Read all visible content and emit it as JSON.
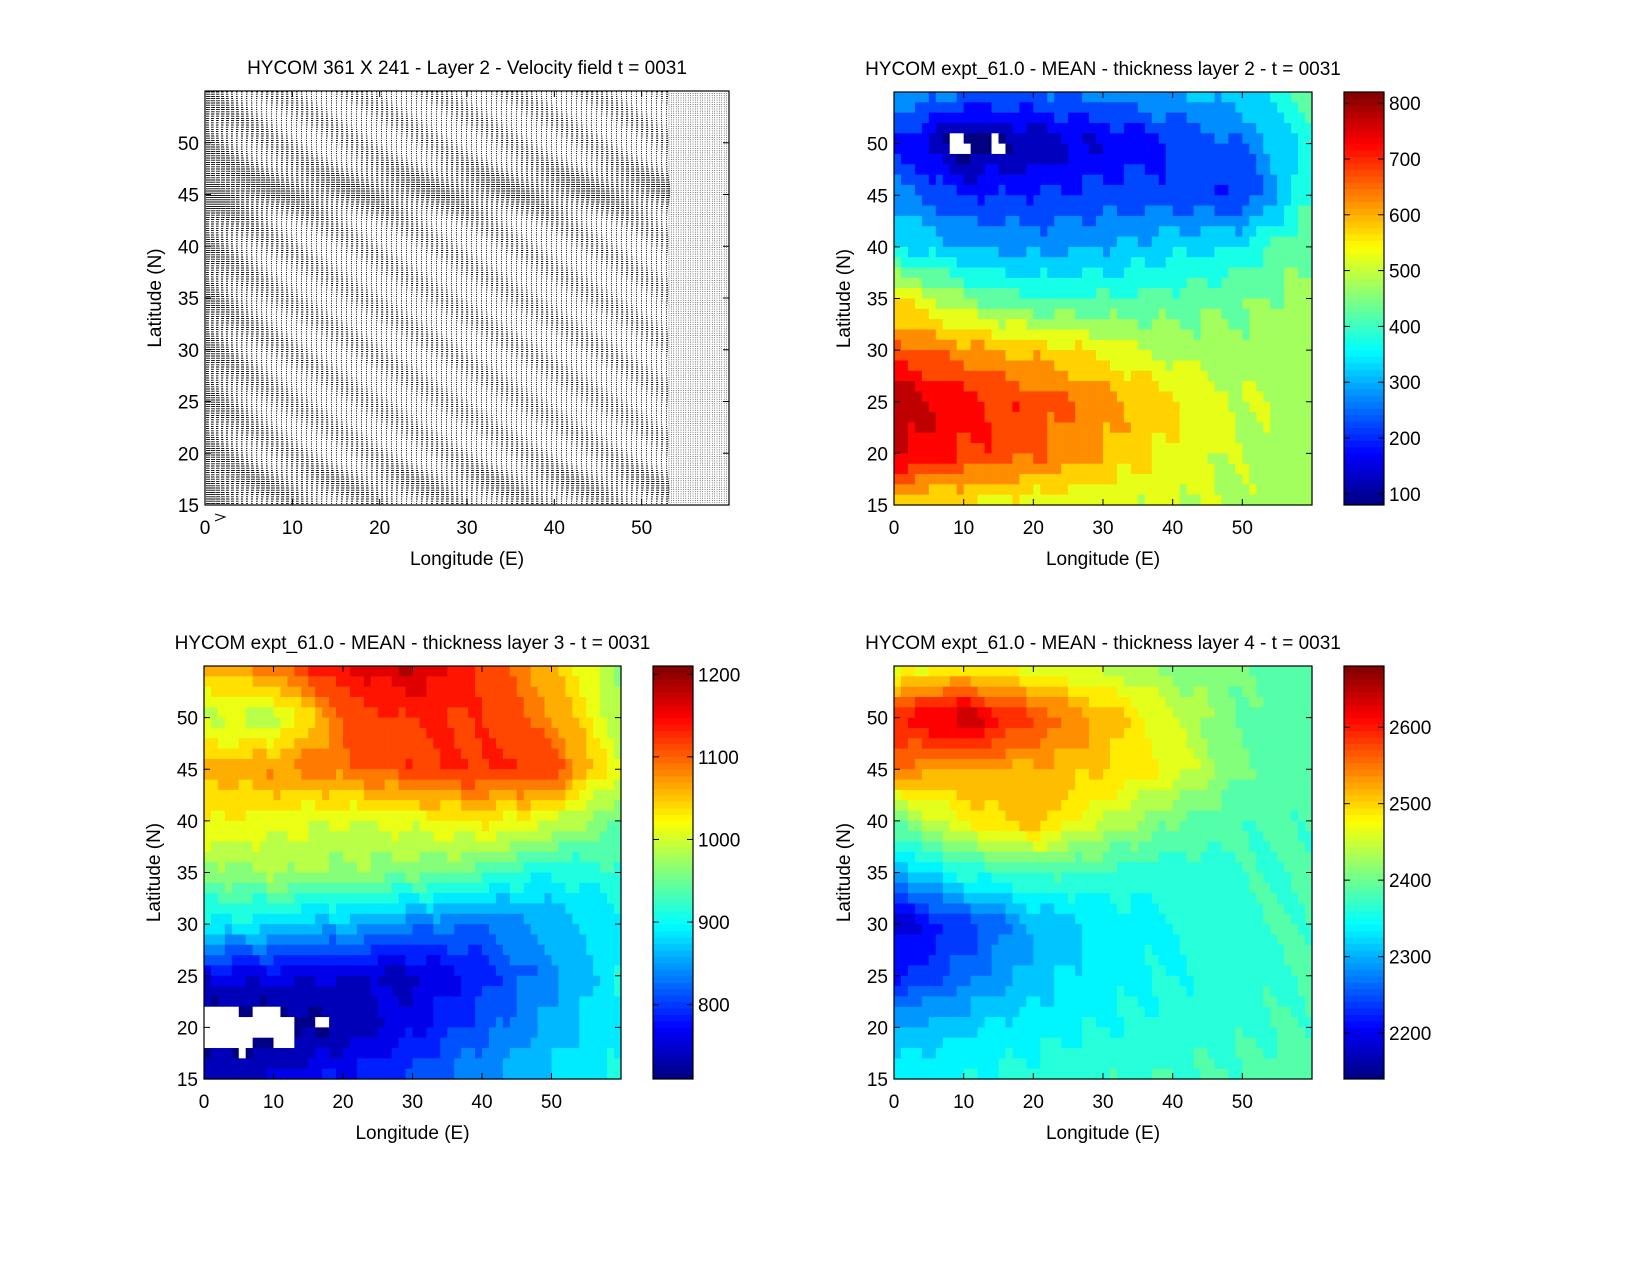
{
  "chart_data": [
    {
      "type": "quiver",
      "title": "HYCOM 361 X 241 - Layer 2 - Velocity field  t = 0031",
      "xlabel": "Longitude (E)",
      "ylabel": "Latitude (N)",
      "xlim": [
        0,
        60
      ],
      "ylim": [
        15,
        55
      ],
      "xticks": [
        "0",
        "10",
        "20",
        "30",
        "40",
        "50"
      ],
      "yticks": [
        "15",
        "20",
        "25",
        "30",
        "35",
        "40",
        "45",
        "50"
      ],
      "reference_arrow": "arrow-icon"
    },
    {
      "type": "heatmap",
      "style": "filled-contour",
      "colormap": "jet",
      "title": "HYCOM expt_61.0 - MEAN - thickness layer 2 - t = 0031",
      "xlabel": "Longitude (E)",
      "ylabel": "Latitude (N)",
      "xlim": [
        0,
        60
      ],
      "ylim": [
        15,
        55
      ],
      "xticks": [
        "0",
        "10",
        "20",
        "30",
        "40",
        "50"
      ],
      "yticks": [
        "15",
        "20",
        "25",
        "30",
        "35",
        "40",
        "45",
        "50"
      ],
      "clim": [
        80,
        820
      ],
      "colorbar_ticks": [
        "100",
        "200",
        "300",
        "400",
        "500",
        "600",
        "700",
        "800"
      ],
      "contour_step": 50,
      "lon": [
        0,
        10,
        20,
        30,
        40,
        50,
        60
      ],
      "lat": [
        55,
        50,
        45,
        40,
        35,
        30,
        25,
        20,
        15
      ],
      "values": [
        [
          300,
          250,
          250,
          270,
          300,
          330,
          420
        ],
        [
          200,
          60,
          110,
          150,
          200,
          250,
          380
        ],
        [
          280,
          200,
          200,
          220,
          220,
          200,
          400
        ],
        [
          350,
          300,
          280,
          300,
          330,
          360,
          450
        ],
        [
          550,
          450,
          400,
          400,
          420,
          440,
          470
        ],
        [
          680,
          620,
          580,
          540,
          480,
          470,
          480
        ],
        [
          790,
          720,
          680,
          620,
          560,
          500,
          480
        ],
        [
          760,
          700,
          660,
          600,
          540,
          490,
          480
        ],
        [
          560,
          540,
          520,
          510,
          500,
          490,
          480
        ]
      ],
      "missing_color": "#ffffff"
    },
    {
      "type": "heatmap",
      "style": "filled-contour",
      "colormap": "jet",
      "title": "HYCOM expt_61.0 - MEAN - thickness layer 3 - t = 0031",
      "xlabel": "Longitude (E)",
      "ylabel": "Latitude (N)",
      "xlim": [
        0,
        60
      ],
      "ylim": [
        15,
        55
      ],
      "xticks": [
        "0",
        "10",
        "20",
        "30",
        "40",
        "50"
      ],
      "yticks": [
        "15",
        "20",
        "25",
        "30",
        "35",
        "40",
        "45",
        "50"
      ],
      "clim": [
        710,
        1210
      ],
      "colorbar_ticks": [
        "800",
        "900",
        "1000",
        "1100",
        "1200"
      ],
      "contour_step": 25,
      "lon": [
        0,
        10,
        20,
        30,
        40,
        50,
        60
      ],
      "lat": [
        55,
        50,
        45,
        40,
        35,
        30,
        25,
        20,
        15
      ],
      "values": [
        [
          1050,
          1100,
          1150,
          1180,
          1120,
          1060,
          960
        ],
        [
          1000,
          980,
          1100,
          1130,
          1120,
          1080,
          980
        ],
        [
          1050,
          1080,
          1090,
          1120,
          1130,
          1120,
          1000
        ],
        [
          1030,
          1010,
          1000,
          1010,
          1030,
          1000,
          950
        ],
        [
          960,
          980,
          970,
          960,
          940,
          900,
          920
        ],
        [
          900,
          880,
          860,
          840,
          820,
          860,
          900
        ],
        [
          760,
          760,
          750,
          740,
          790,
          840,
          900
        ],
        [
          700,
          700,
          730,
          770,
          810,
          860,
          900
        ],
        [
          740,
          760,
          780,
          810,
          850,
          880,
          900
        ]
      ],
      "missing_color": "#ffffff"
    },
    {
      "type": "heatmap",
      "style": "filled-contour",
      "colormap": "jet",
      "title": "HYCOM expt_61.0 - MEAN - thickness layer 4 - t = 0031",
      "xlabel": "Longitude (E)",
      "ylabel": "Latitude (N)",
      "xlim": [
        0,
        60
      ],
      "ylim": [
        15,
        55
      ],
      "xticks": [
        "0",
        "10",
        "20",
        "30",
        "40",
        "50"
      ],
      "yticks": [
        "15",
        "20",
        "25",
        "30",
        "35",
        "40",
        "45",
        "50"
      ],
      "clim": [
        2140,
        2680
      ],
      "colorbar_ticks": [
        "2200",
        "2300",
        "2400",
        "2500",
        "2600"
      ],
      "contour_step": 25,
      "lon": [
        0,
        10,
        20,
        30,
        40,
        50,
        60
      ],
      "lat": [
        55,
        50,
        45,
        40,
        35,
        30,
        25,
        20,
        15
      ],
      "values": [
        [
          2450,
          2480,
          2460,
          2440,
          2420,
          2400,
          2380
        ],
        [
          2600,
          2650,
          2580,
          2520,
          2450,
          2400,
          2380
        ],
        [
          2550,
          2520,
          2520,
          2500,
          2470,
          2400,
          2380
        ],
        [
          2400,
          2480,
          2520,
          2450,
          2400,
          2380,
          2380
        ],
        [
          2300,
          2360,
          2380,
          2370,
          2360,
          2370,
          2380
        ],
        [
          2180,
          2230,
          2300,
          2330,
          2350,
          2370,
          2380
        ],
        [
          2220,
          2260,
          2310,
          2340,
          2350,
          2360,
          2380
        ],
        [
          2300,
          2320,
          2340,
          2350,
          2360,
          2370,
          2380
        ],
        [
          2340,
          2350,
          2360,
          2370,
          2375,
          2380,
          2390
        ]
      ]
    }
  ]
}
